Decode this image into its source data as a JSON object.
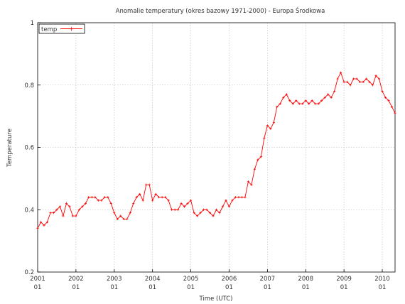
{
  "chart_data": {
    "type": "line",
    "title": "Anomalie temperatury (okres bazowy 1971-2000) - Europa Środkowa",
    "xlabel": "Time (UTC)",
    "ylabel": "Temperature",
    "ylim": [
      0.2,
      1.0
    ],
    "y_ticks": [
      "0.2",
      "0.4",
      "0.6",
      "0.8",
      "1"
    ],
    "y_tick_values": [
      0.2,
      0.4,
      0.6,
      0.8,
      1.0
    ],
    "x_tick_years": [
      "2001",
      "2002",
      "2003",
      "2004",
      "2005",
      "2006",
      "2007",
      "2008",
      "2009",
      "2010"
    ],
    "x_tick_month": "01",
    "grid": true,
    "legend_position": "top-left",
    "series_color": "#ff0000",
    "series": [
      {
        "name": "temp",
        "start": "2001-01",
        "x": [
          "2001-01",
          "2001-02",
          "2001-03",
          "2001-04",
          "2001-05",
          "2001-06",
          "2001-07",
          "2001-08",
          "2001-09",
          "2001-10",
          "2001-11",
          "2001-12",
          "2002-01",
          "2002-02",
          "2002-03",
          "2002-04",
          "2002-05",
          "2002-06",
          "2002-07",
          "2002-08",
          "2002-09",
          "2002-10",
          "2002-11",
          "2002-12",
          "2003-01",
          "2003-02",
          "2003-03",
          "2003-04",
          "2003-05",
          "2003-06",
          "2003-07",
          "2003-08",
          "2003-09",
          "2003-10",
          "2003-11",
          "2003-12",
          "2004-01",
          "2004-02",
          "2004-03",
          "2004-04",
          "2004-05",
          "2004-06",
          "2004-07",
          "2004-08",
          "2004-09",
          "2004-10",
          "2004-11",
          "2004-12",
          "2005-01",
          "2005-02",
          "2005-03",
          "2005-04",
          "2005-05",
          "2005-06",
          "2005-07",
          "2005-08",
          "2005-09",
          "2005-10",
          "2005-11",
          "2005-12",
          "2006-01",
          "2006-02",
          "2006-03",
          "2006-04",
          "2006-05",
          "2006-06",
          "2006-07",
          "2006-08",
          "2006-09",
          "2006-10",
          "2006-11",
          "2006-12",
          "2007-01",
          "2007-02",
          "2007-03",
          "2007-04",
          "2007-05",
          "2007-06",
          "2007-07",
          "2007-08",
          "2007-09",
          "2007-10",
          "2007-11",
          "2007-12",
          "2008-01",
          "2008-02",
          "2008-03",
          "2008-04",
          "2008-05",
          "2008-06",
          "2008-07",
          "2008-08",
          "2008-09",
          "2008-10",
          "2008-11",
          "2008-12",
          "2009-01",
          "2009-02",
          "2009-03",
          "2009-04",
          "2009-05",
          "2009-06",
          "2009-07",
          "2009-08",
          "2009-09",
          "2009-10",
          "2009-11",
          "2009-12",
          "2010-01",
          "2010-02",
          "2010-03",
          "2010-04",
          "2010-05"
        ],
        "values": [
          0.34,
          0.36,
          0.35,
          0.36,
          0.39,
          0.39,
          0.4,
          0.41,
          0.38,
          0.42,
          0.41,
          0.38,
          0.38,
          0.4,
          0.41,
          0.42,
          0.44,
          0.44,
          0.44,
          0.43,
          0.43,
          0.44,
          0.44,
          0.42,
          0.39,
          0.37,
          0.38,
          0.37,
          0.37,
          0.39,
          0.42,
          0.44,
          0.45,
          0.43,
          0.48,
          0.48,
          0.43,
          0.45,
          0.44,
          0.44,
          0.44,
          0.43,
          0.4,
          0.4,
          0.4,
          0.42,
          0.41,
          0.42,
          0.43,
          0.39,
          0.38,
          0.39,
          0.4,
          0.4,
          0.39,
          0.38,
          0.4,
          0.39,
          0.41,
          0.43,
          0.41,
          0.43,
          0.44,
          0.44,
          0.44,
          0.44,
          0.49,
          0.48,
          0.53,
          0.56,
          0.57,
          0.63,
          0.67,
          0.66,
          0.68,
          0.73,
          0.74,
          0.76,
          0.77,
          0.75,
          0.74,
          0.75,
          0.74,
          0.74,
          0.75,
          0.74,
          0.75,
          0.74,
          0.74,
          0.75,
          0.76,
          0.77,
          0.76,
          0.78,
          0.82,
          0.84,
          0.81,
          0.81,
          0.8,
          0.82,
          0.82,
          0.81,
          0.81,
          0.82,
          0.81,
          0.8,
          0.83,
          0.82,
          0.78,
          0.76,
          0.75,
          0.73,
          0.71
        ]
      }
    ]
  }
}
